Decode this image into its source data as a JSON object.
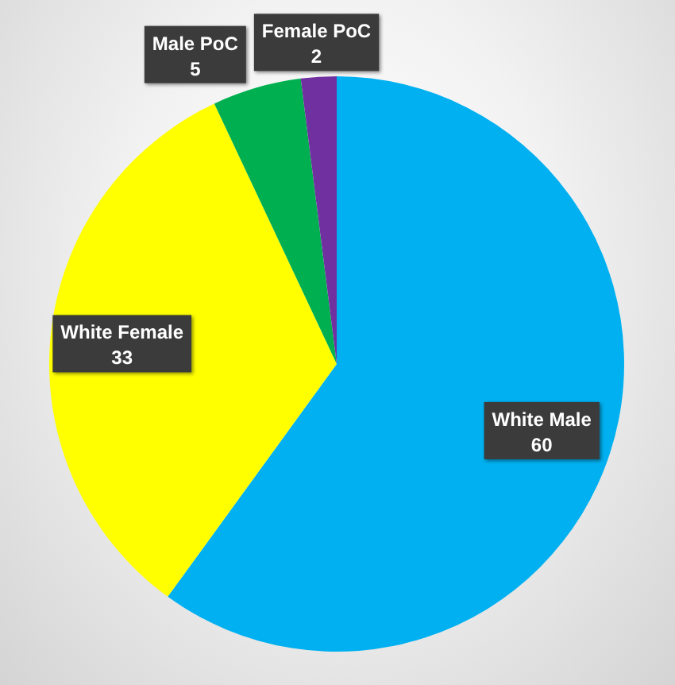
{
  "chart_data": {
    "type": "pie",
    "categories": [
      "White Male",
      "White Female",
      "Male PoC",
      "Female PoC"
    ],
    "values": [
      60,
      33,
      5,
      2
    ],
    "colors": [
      "#00b0f0",
      "#ffff00",
      "#00b050",
      "#7030a0"
    ],
    "data_labels": true
  }
}
